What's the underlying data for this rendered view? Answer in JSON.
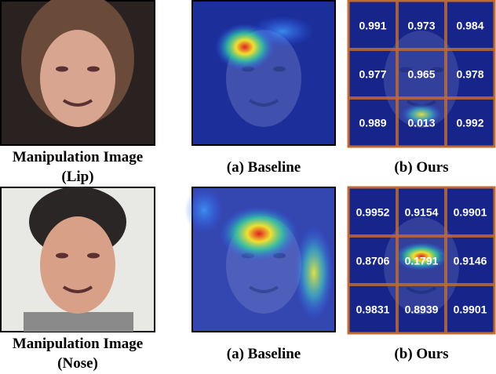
{
  "panels": [
    {
      "source_caption": [
        "Manipulation Image",
        "(Lip)"
      ],
      "baseline_caption": "(a) Baseline",
      "ours_caption": "(b) Ours",
      "grid": [
        [
          "0.991",
          "0.973",
          "0.984"
        ],
        [
          "0.977",
          "0.965",
          "0.978"
        ],
        [
          "0.989",
          "0.013",
          "0.992"
        ]
      ]
    },
    {
      "source_caption": [
        "Manipulation Image",
        "(Nose)"
      ],
      "baseline_caption": "(a) Baseline",
      "ours_caption": "(b) Ours",
      "grid": [
        [
          "0.9952",
          "0.9154",
          "0.9901"
        ],
        [
          "0.8706",
          "0.1791",
          "0.9146"
        ],
        [
          "0.9831",
          "0.8939",
          "0.9901"
        ]
      ]
    }
  ]
}
